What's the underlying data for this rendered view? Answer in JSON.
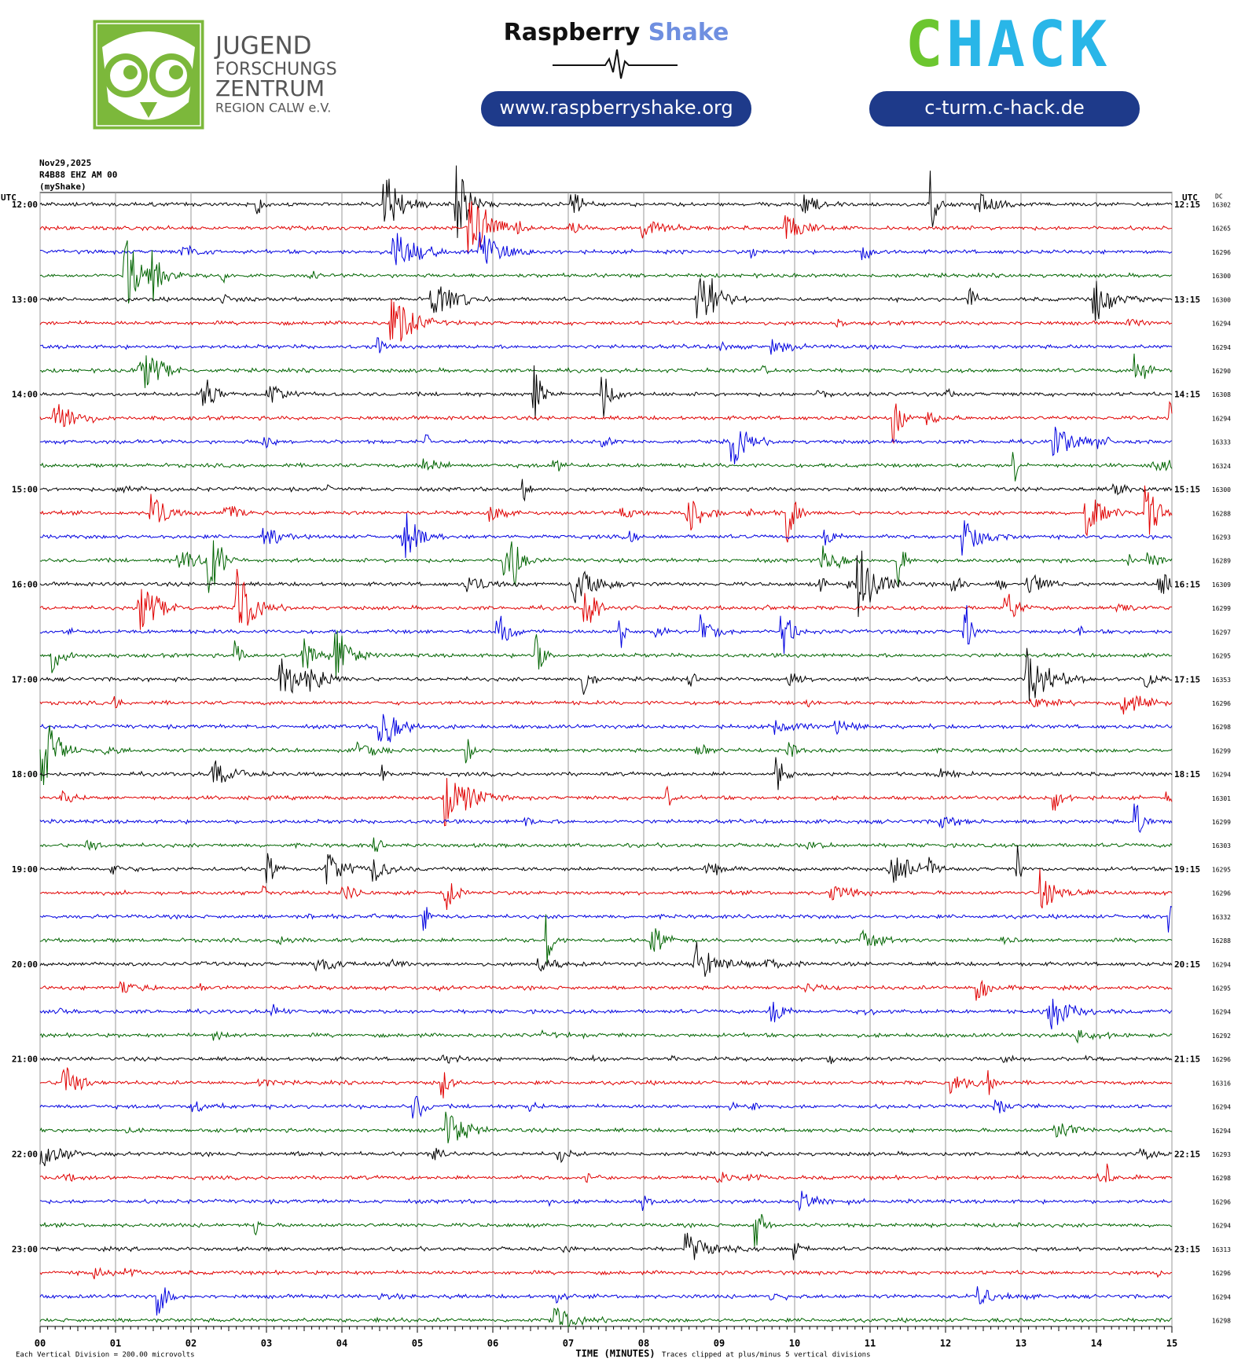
{
  "header": {
    "jfz": {
      "lines": [
        "JUGEND",
        "FORSCHUNGS",
        "ZENTRUM",
        "REGION CALW e.V."
      ]
    },
    "rs": {
      "name1": "Raspberry",
      "name2": "Shake",
      "url": "www.raspberryshake.org"
    },
    "chack": {
      "c": "C",
      "hack": "HACK",
      "url": "c-turm.c-hack.de"
    }
  },
  "plot": {
    "date": "Nov29,2025",
    "station": "R4B88 EHZ AM 00",
    "network": "(myShake)",
    "utc_left": "UTC",
    "utc_right": "UTC",
    "dc_label": "DC",
    "left_times": [
      "12:00",
      "13:00",
      "14:00",
      "15:00",
      "16:00",
      "17:00",
      "18:00",
      "19:00",
      "20:00",
      "21:00",
      "22:00",
      "23:00"
    ],
    "right_times": [
      "12:15",
      "13:15",
      "14:15",
      "15:15",
      "16:15",
      "17:15",
      "18:15",
      "19:15",
      "20:15",
      "21:15",
      "22:15",
      "23:15"
    ],
    "dc_values": [
      16302,
      16265,
      16296,
      16300,
      16300,
      16294,
      16294,
      16290,
      16308,
      16294,
      16333,
      16324,
      16300,
      16288,
      16293,
      16289,
      16309,
      16299,
      16297,
      16295,
      16353,
      16296,
      16298,
      16299,
      16294,
      16301,
      16299,
      16303,
      16295,
      16296,
      16332,
      16288,
      16294,
      16295,
      16294,
      16292,
      16296,
      16316,
      16294,
      16294,
      16293,
      16298,
      16296,
      16294,
      16313,
      16296,
      16294,
      16298
    ],
    "x_ticks": [
      "00",
      "01",
      "02",
      "03",
      "04",
      "05",
      "06",
      "07",
      "08",
      "09",
      "10",
      "11",
      "12",
      "13",
      "14",
      "15"
    ],
    "x_label": "TIME (MINUTES)",
    "scale_note": "Each Vertical Division =  200.00 microvolts",
    "clip_note": "Traces clipped at plus/minus 5 vertical divisions",
    "trace_colors": [
      "#000000",
      "#e00000",
      "#0000e0",
      "#006400"
    ]
  }
}
